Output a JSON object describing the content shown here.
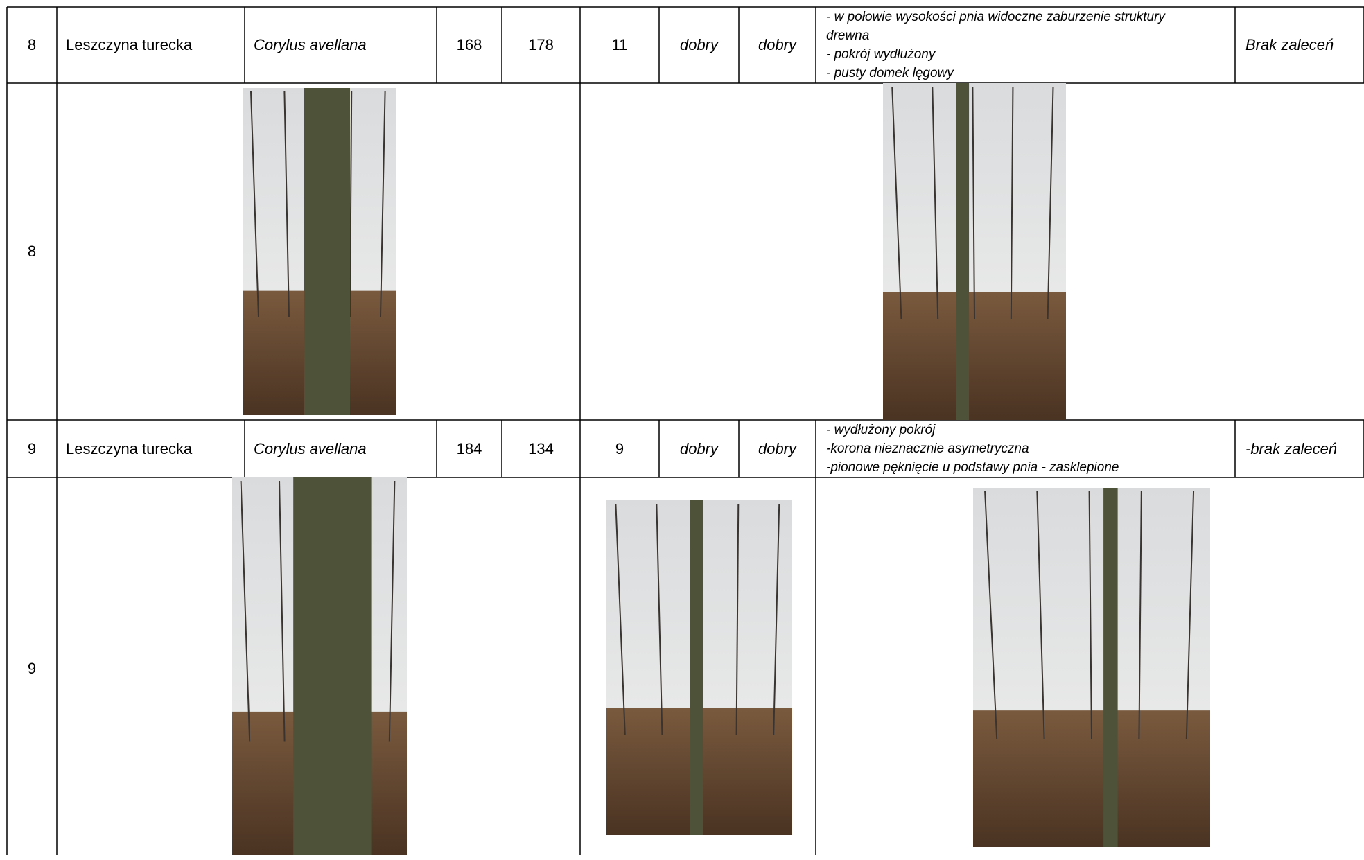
{
  "table": {
    "rows": [
      {
        "nr": 8,
        "name": "Leszczyna turecka",
        "latin": "Corylus avellana",
        "col4": 168,
        "col5": 178,
        "col6": 11,
        "state1": "dobry",
        "state2": "dobry",
        "notes": [
          "- w połowie wysokości pnia widoczne zaburzenie struktury drewna",
          "- pokrój wydłużony",
          "- pusty domek lęgowy"
        ],
        "recommendation": "Brak zaleceń"
      },
      {
        "nr": 9,
        "name": "Leszczyna turecka",
        "latin": "Corylus avellana",
        "col4": 184,
        "col5": 134,
        "col6": 9,
        "state1": "dobry",
        "state2": "dobry",
        "notes": [
          "- wydłużony pokrój",
          "-korona nieznacznie asymetryczna",
          "-pionowe pęknięcie u podstawy pnia - zasklepione"
        ],
        "recommendation": "-brak zaleceń"
      }
    ],
    "photo_rows": [
      {
        "nr": 8
      },
      {
        "nr": 9
      }
    ]
  }
}
